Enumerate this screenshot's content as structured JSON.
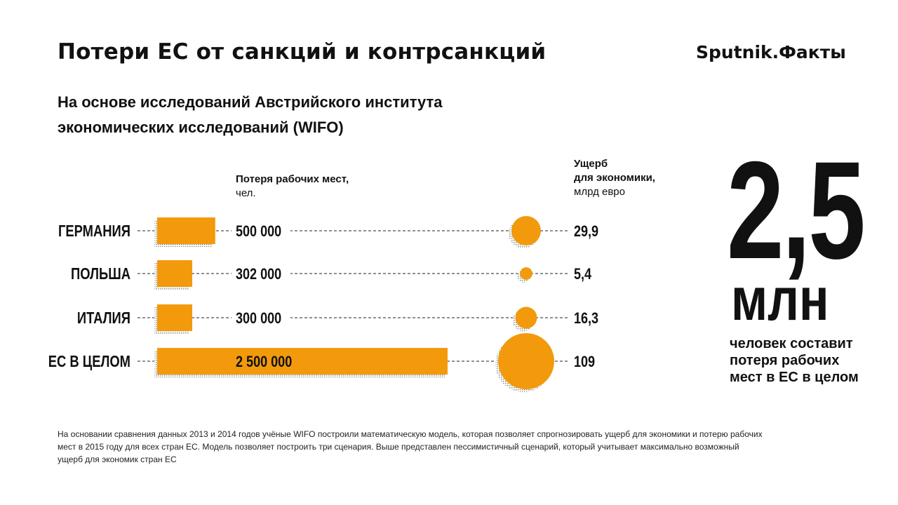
{
  "header": {
    "title": "Потери ЕС от санкций и контрсанкций",
    "brand": "Sputnik.Факты"
  },
  "subtitle": {
    "line1": "На основе исследований Австрийского института",
    "line2": "экономических исследований (WIFO)"
  },
  "columns": {
    "jobs_header": "Потеря рабочих мест,",
    "jobs_unit": "чел.",
    "damage_header1": "Ущерб",
    "damage_header2": "для экономики,",
    "damage_unit": "млрд евро"
  },
  "highlight": {
    "number": "2,5",
    "unit": "млн",
    "caption_line1": "человек составит",
    "caption_line2": "потеря рабочих",
    "caption_line3": "мест в ЕС в целом"
  },
  "footnote": {
    "line1": "На основании сравнения данных 2013 и 2014 годов учёные WIFO построили математическую модель, которая позволяет спрогнозировать ущерб для экономики и потерю рабочих",
    "line2": "мест в 2015 году для всех стран ЕС. Модель позволяет построить три сценария. Выше представлен пессимистичный сценарий, который учитывает максимально возможный",
    "line3": "ущерб для экономик стран ЕС"
  },
  "colors": {
    "accent": "#F29A0C",
    "text": "#111111",
    "shadow": "#9a9a9a"
  },
  "chart_data": {
    "type": "bar",
    "categories": [
      "ГЕРМАНИЯ",
      "ПОЛЬША",
      "ИТАЛИЯ",
      "ЕС В ЦЕЛОМ"
    ],
    "series": [
      {
        "name": "Потеря рабочих мест, чел.",
        "values": [
          500000,
          302000,
          300000,
          2500000
        ],
        "labels": [
          "500 000",
          "302 000",
          "300 000",
          "2 500 000"
        ]
      },
      {
        "name": "Ущерб для экономики, млрд евро",
        "values": [
          29.9,
          5.4,
          16.3,
          109
        ],
        "labels": [
          "29,9",
          "5,4",
          "16,3",
          "109"
        ]
      }
    ],
    "title": "Потери ЕС от санкций и контрсанкций",
    "xlabel": "",
    "ylabel": ""
  }
}
